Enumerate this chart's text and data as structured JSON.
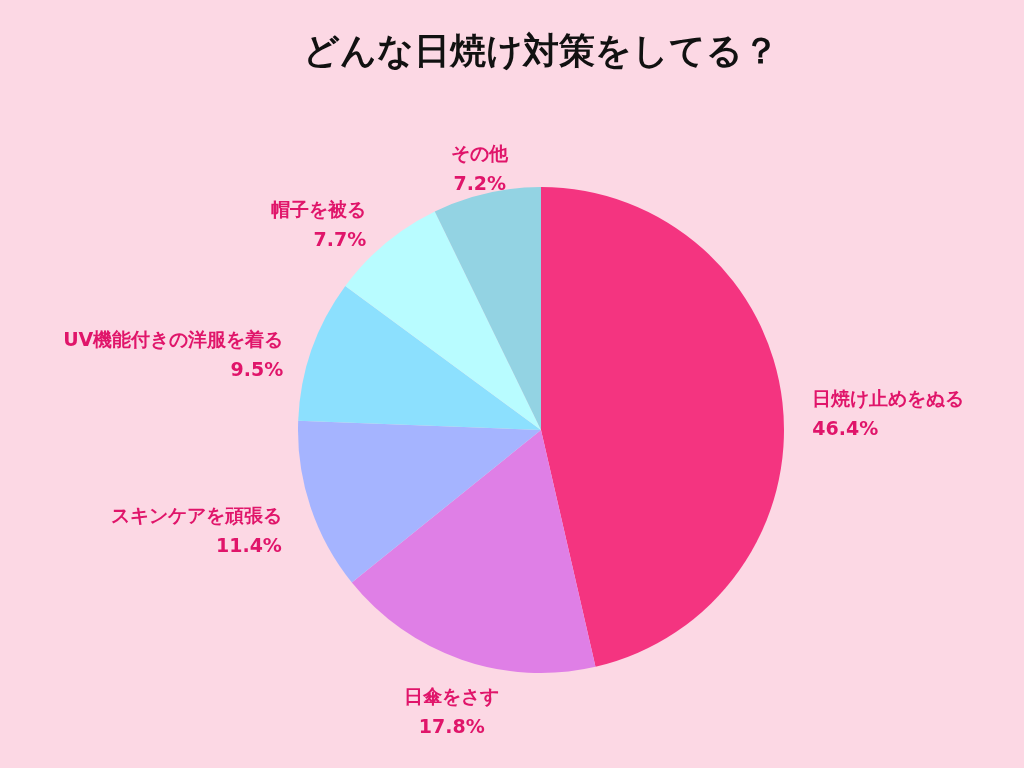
{
  "chart_data": {
    "type": "pie",
    "title": "どんな日焼け対策をしてる？",
    "categories": [
      "日焼け止めをぬる",
      "日傘をさす",
      "スキンケアを頑張る",
      "UV機能付きの洋服を着る",
      "帽子を被る",
      "その他"
    ],
    "values": [
      46.4,
      17.8,
      11.4,
      9.5,
      7.7,
      7.2
    ],
    "value_labels": [
      "46.4%",
      "17.8%",
      "11.4%",
      "9.5%",
      "7.7%",
      "7.2%"
    ],
    "colors": [
      "#f43480",
      "#df7fe6",
      "#a5b4ff",
      "#8ce0fe",
      "#b8fcff",
      "#93d3e3"
    ]
  }
}
